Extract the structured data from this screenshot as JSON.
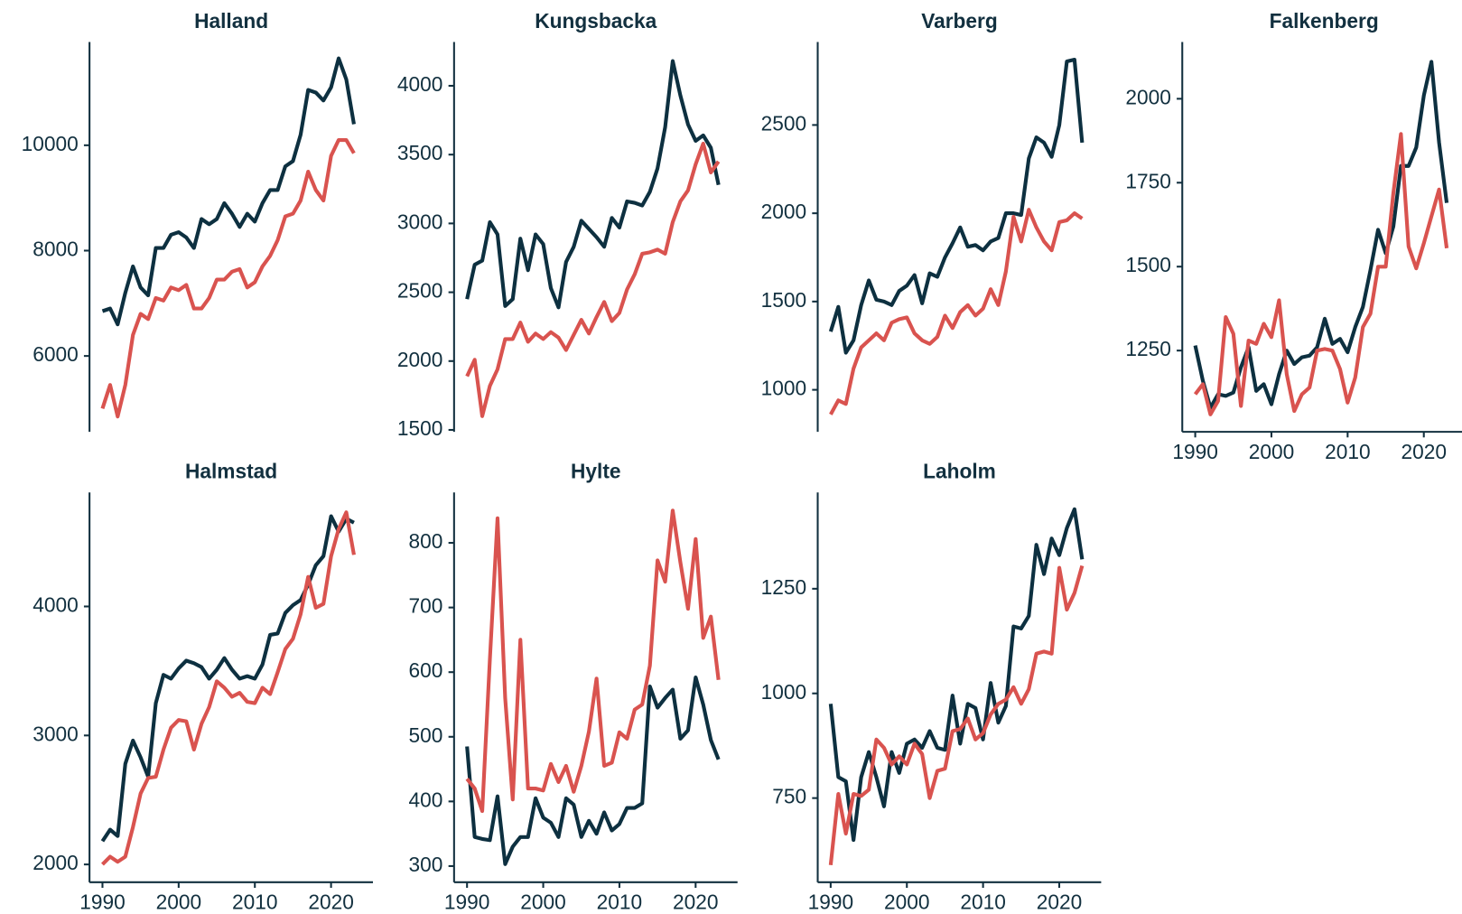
{
  "chart_data": [
    {
      "type": "line",
      "title": "Halland",
      "x": [
        1990,
        1991,
        1992,
        1993,
        1994,
        1995,
        1996,
        1997,
        1998,
        1999,
        2000,
        2001,
        2002,
        2003,
        2004,
        2005,
        2006,
        2007,
        2008,
        2009,
        2010,
        2011,
        2012,
        2013,
        2014,
        2015,
        2016,
        2017,
        2018,
        2019,
        2020,
        2021,
        2022,
        2023
      ],
      "series": [
        {
          "color": "#0d3040",
          "values": [
            6850,
            6900,
            6600,
            7200,
            7700,
            7300,
            7150,
            8050,
            8050,
            8300,
            8350,
            8250,
            8050,
            8600,
            8500,
            8600,
            8900,
            8700,
            8450,
            8700,
            8550,
            8900,
            9150,
            9150,
            9600,
            9700,
            10200,
            11050,
            11000,
            10850,
            11100,
            11650,
            11250,
            10400
          ]
        },
        {
          "color": "#d9534f",
          "values": [
            5000,
            5450,
            4850,
            5450,
            6400,
            6800,
            6700,
            7100,
            7050,
            7300,
            7250,
            7350,
            6900,
            6900,
            7100,
            7450,
            7450,
            7600,
            7650,
            7300,
            7400,
            7700,
            7900,
            8200,
            8650,
            8700,
            8950,
            9500,
            9150,
            8950,
            9800,
            10100,
            10100,
            9850
          ]
        }
      ],
      "xlim": [
        1988.3,
        2025.5
      ],
      "ylim": [
        4560,
        11960
      ],
      "yticks": [
        6000,
        8000,
        10000
      ]
    },
    {
      "type": "line",
      "title": "Kungsbacka",
      "x": [
        1990,
        1991,
        1992,
        1993,
        1994,
        1995,
        1996,
        1997,
        1998,
        1999,
        2000,
        2001,
        2002,
        2003,
        2004,
        2005,
        2006,
        2007,
        2008,
        2009,
        2010,
        2011,
        2012,
        2013,
        2014,
        2015,
        2016,
        2017,
        2018,
        2019,
        2020,
        2021,
        2022,
        2023
      ],
      "series": [
        {
          "color": "#0d3040",
          "values": [
            2450,
            2700,
            2730,
            3010,
            2920,
            2400,
            2450,
            2890,
            2660,
            2920,
            2850,
            2530,
            2390,
            2720,
            2830,
            3020,
            2960,
            2900,
            2830,
            3040,
            2970,
            3160,
            3150,
            3130,
            3230,
            3400,
            3700,
            4180,
            3930,
            3720,
            3600,
            3640,
            3550,
            3280
          ]
        },
        {
          "color": "#d9534f",
          "values": [
            1890,
            2010,
            1600,
            1820,
            1940,
            2160,
            2160,
            2280,
            2140,
            2200,
            2160,
            2210,
            2170,
            2080,
            2190,
            2300,
            2200,
            2320,
            2430,
            2290,
            2350,
            2520,
            2630,
            2780,
            2790,
            2810,
            2780,
            3010,
            3160,
            3240,
            3430,
            3580,
            3370,
            3450
          ]
        }
      ],
      "xlim": [
        1988.3,
        2025.5
      ],
      "ylim": [
        1486,
        4318
      ],
      "yticks": [
        1500,
        2000,
        2500,
        3000,
        3500,
        4000
      ]
    },
    {
      "type": "line",
      "title": "Varberg",
      "x": [
        1990,
        1991,
        1992,
        1993,
        1994,
        1995,
        1996,
        1997,
        1998,
        1999,
        2000,
        2001,
        2002,
        2003,
        2004,
        2005,
        2006,
        2007,
        2008,
        2009,
        2010,
        2011,
        2012,
        2013,
        2014,
        2015,
        2016,
        2017,
        2018,
        2019,
        2020,
        2021,
        2022,
        2023
      ],
      "series": [
        {
          "color": "#0d3040",
          "values": [
            1330,
            1470,
            1210,
            1280,
            1480,
            1620,
            1510,
            1500,
            1480,
            1560,
            1590,
            1650,
            1490,
            1660,
            1640,
            1750,
            1830,
            1920,
            1810,
            1820,
            1790,
            1840,
            1860,
            2000,
            2000,
            1990,
            2310,
            2430,
            2400,
            2320,
            2500,
            2860,
            2870,
            2400
          ]
        },
        {
          "color": "#d9534f",
          "values": [
            860,
            940,
            920,
            1120,
            1240,
            1280,
            1320,
            1280,
            1380,
            1400,
            1410,
            1320,
            1280,
            1260,
            1300,
            1420,
            1350,
            1440,
            1480,
            1420,
            1460,
            1570,
            1480,
            1670,
            1980,
            1840,
            2020,
            1920,
            1840,
            1790,
            1950,
            1960,
            2000,
            1970
          ]
        }
      ],
      "xlim": [
        1988.3,
        2025.5
      ],
      "ylim": [
        762,
        2970
      ],
      "yticks": [
        1000,
        1500,
        2000,
        2500
      ]
    },
    {
      "type": "line",
      "title": "Falkenberg",
      "x": [
        1990,
        1991,
        1992,
        1993,
        1994,
        1995,
        1996,
        1997,
        1998,
        1999,
        2000,
        2001,
        2002,
        2003,
        2004,
        2005,
        2006,
        2007,
        2008,
        2009,
        2010,
        2011,
        2012,
        2013,
        2014,
        2015,
        2016,
        2017,
        2018,
        2019,
        2020,
        2021,
        2022,
        2023
      ],
      "series": [
        {
          "color": "#0d3040",
          "values": [
            1265,
            1160,
            1080,
            1120,
            1115,
            1125,
            1200,
            1260,
            1130,
            1150,
            1090,
            1180,
            1250,
            1210,
            1230,
            1235,
            1260,
            1345,
            1270,
            1285,
            1245,
            1320,
            1380,
            1490,
            1610,
            1540,
            1620,
            1800,
            1800,
            1855,
            2010,
            2110,
            1870,
            1690
          ]
        },
        {
          "color": "#d9534f",
          "values": [
            1120,
            1150,
            1060,
            1100,
            1350,
            1300,
            1085,
            1280,
            1270,
            1330,
            1290,
            1400,
            1180,
            1070,
            1120,
            1140,
            1250,
            1255,
            1250,
            1195,
            1095,
            1170,
            1320,
            1360,
            1500,
            1500,
            1720,
            1895,
            1560,
            1495,
            1570,
            1650,
            1730,
            1555
          ]
        }
      ],
      "xlim": [
        1988.3,
        2025.5
      ],
      "ylim": [
        1008,
        2169
      ],
      "yticks": [
        1250,
        1500,
        1750,
        2000
      ],
      "xticks": [
        1990,
        2000,
        2010,
        2020
      ]
    },
    {
      "type": "line",
      "title": "Halmstad",
      "x": [
        1990,
        1991,
        1992,
        1993,
        1994,
        1995,
        1996,
        1997,
        1998,
        1999,
        2000,
        2001,
        2002,
        2003,
        2004,
        2005,
        2006,
        2007,
        2008,
        2009,
        2010,
        2011,
        2012,
        2013,
        2014,
        2015,
        2016,
        2017,
        2018,
        2019,
        2020,
        2021,
        2022,
        2023
      ],
      "series": [
        {
          "color": "#0d3040",
          "values": [
            2180,
            2270,
            2220,
            2780,
            2960,
            2830,
            2680,
            3250,
            3470,
            3440,
            3520,
            3580,
            3560,
            3530,
            3440,
            3510,
            3600,
            3510,
            3440,
            3460,
            3440,
            3550,
            3780,
            3790,
            3950,
            4010,
            4050,
            4170,
            4320,
            4390,
            4700,
            4580,
            4680,
            4650
          ]
        },
        {
          "color": "#d9534f",
          "values": [
            2000,
            2060,
            2020,
            2060,
            2290,
            2550,
            2670,
            2680,
            2890,
            3060,
            3120,
            3110,
            2890,
            3090,
            3220,
            3420,
            3370,
            3300,
            3330,
            3260,
            3250,
            3370,
            3320,
            3490,
            3670,
            3750,
            3940,
            4230,
            3990,
            4020,
            4390,
            4600,
            4730,
            4400
          ]
        }
      ],
      "xlim": [
        1988.3,
        2025.5
      ],
      "ylim": [
        1862,
        4884
      ],
      "yticks": [
        2000,
        3000,
        4000
      ],
      "xticks": [
        1990,
        2000,
        2010,
        2020
      ]
    },
    {
      "type": "line",
      "title": "Hylte",
      "x": [
        1990,
        1991,
        1992,
        1993,
        1994,
        1995,
        1996,
        1997,
        1998,
        1999,
        2000,
        2001,
        2002,
        2003,
        2004,
        2005,
        2006,
        2007,
        2008,
        2009,
        2010,
        2011,
        2012,
        2013,
        2014,
        2015,
        2016,
        2017,
        2018,
        2019,
        2020,
        2021,
        2022,
        2023
      ],
      "series": [
        {
          "color": "#0d3040",
          "values": [
            485,
            345,
            342,
            340,
            408,
            303,
            330,
            345,
            345,
            405,
            375,
            367,
            345,
            405,
            395,
            345,
            370,
            350,
            383,
            355,
            365,
            390,
            390,
            397,
            578,
            545,
            560,
            573,
            497,
            510,
            592,
            550,
            495,
            465
          ]
        },
        {
          "color": "#d9534f",
          "values": [
            435,
            420,
            385,
            620,
            838,
            560,
            403,
            650,
            420,
            420,
            417,
            458,
            430,
            455,
            415,
            455,
            508,
            590,
            455,
            460,
            507,
            497,
            542,
            550,
            610,
            773,
            740,
            850,
            770,
            698,
            806,
            653,
            686,
            588
          ]
        }
      ],
      "xlim": [
        1988.3,
        2025.5
      ],
      "ylim": [
        275,
        878
      ],
      "yticks": [
        300,
        400,
        500,
        600,
        700,
        800
      ],
      "xticks": [
        1990,
        2000,
        2010,
        2020
      ]
    },
    {
      "type": "line",
      "title": "Laholm",
      "x": [
        1990,
        1991,
        1992,
        1993,
        1994,
        1995,
        1996,
        1997,
        1998,
        1999,
        2000,
        2001,
        2002,
        2003,
        2004,
        2005,
        2006,
        2007,
        2008,
        2009,
        2010,
        2011,
        2012,
        2013,
        2014,
        2015,
        2016,
        2017,
        2018,
        2019,
        2020,
        2021,
        2022,
        2023
      ],
      "series": [
        {
          "color": "#0d3040",
          "values": [
            975,
            800,
            790,
            650,
            800,
            860,
            800,
            730,
            860,
            810,
            880,
            890,
            870,
            910,
            870,
            865,
            995,
            880,
            975,
            965,
            890,
            1025,
            930,
            970,
            1160,
            1155,
            1185,
            1355,
            1285,
            1370,
            1330,
            1395,
            1440,
            1320
          ]
        },
        {
          "color": "#d9534f",
          "values": [
            590,
            760,
            665,
            760,
            755,
            770,
            890,
            870,
            830,
            850,
            830,
            880,
            855,
            750,
            815,
            820,
            910,
            915,
            940,
            890,
            905,
            950,
            975,
            985,
            1015,
            975,
            1010,
            1095,
            1100,
            1095,
            1300,
            1200,
            1240,
            1305
          ]
        }
      ],
      "xlim": [
        1988.3,
        2025.5
      ],
      "ylim": [
        549,
        1480
      ],
      "yticks": [
        750,
        1000,
        1250
      ],
      "xticks": [
        1990,
        2000,
        2010,
        2020
      ]
    }
  ]
}
